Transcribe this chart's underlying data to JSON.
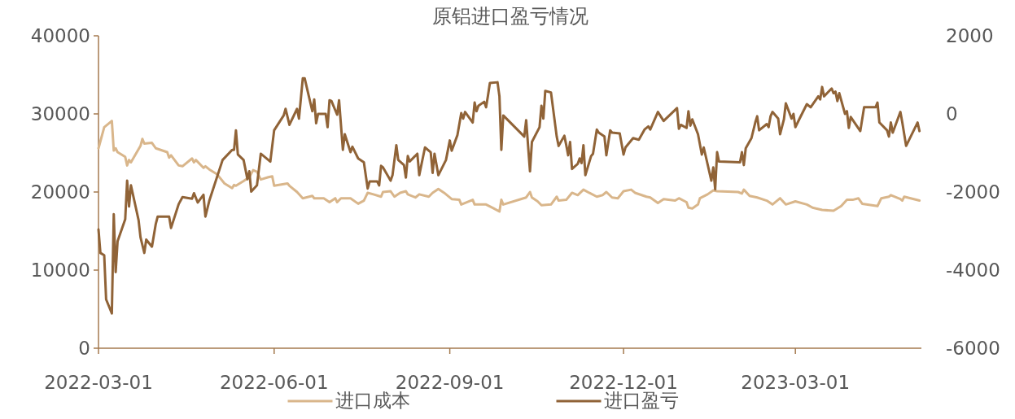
{
  "chart_data": {
    "type": "line",
    "title": "原铝进口盈亏情况",
    "series": [
      {
        "name": "进口成本",
        "color": "#d9b68b",
        "x": [
          "2022-03-01",
          "2022-03-04",
          "2022-03-08",
          "2022-03-09",
          "2022-03-10",
          "2022-03-11",
          "2022-03-15",
          "2022-03-16",
          "2022-03-17",
          "2022-03-18",
          "2022-03-23",
          "2022-03-24",
          "2022-03-25",
          "2022-03-29",
          "2022-03-31",
          "2022-04-06",
          "2022-04-07",
          "2022-04-08",
          "2022-04-12",
          "2022-04-14",
          "2022-04-19",
          "2022-04-20",
          "2022-04-21",
          "2022-04-25",
          "2022-04-26",
          "2022-04-28",
          "2022-05-02",
          "2022-05-06",
          "2022-05-10",
          "2022-05-11",
          "2022-05-12",
          "2022-05-16",
          "2022-05-19",
          "2022-05-21",
          "2022-05-23",
          "2022-05-25",
          "2022-05-29",
          "2022-05-31",
          "2022-06-01",
          "2022-06-08",
          "2022-06-09",
          "2022-06-13",
          "2022-06-16",
          "2022-06-21",
          "2022-06-22",
          "2022-06-27",
          "2022-06-30",
          "2022-07-03",
          "2022-07-04",
          "2022-07-06",
          "2022-07-11",
          "2022-07-15",
          "2022-07-18",
          "2022-07-20",
          "2022-07-23",
          "2022-07-27",
          "2022-07-28",
          "2022-08-01",
          "2022-08-03",
          "2022-08-06",
          "2022-08-09",
          "2022-08-10",
          "2022-08-14",
          "2022-08-16",
          "2022-08-21",
          "2022-08-23",
          "2022-08-26",
          "2022-08-29",
          "2022-09-02",
          "2022-09-06",
          "2022-09-07",
          "2022-09-13",
          "2022-09-14",
          "2022-09-20",
          "2022-09-24",
          "2022-09-27",
          "2022-09-28",
          "2022-09-29",
          "2022-10-11",
          "2022-10-13",
          "2022-10-14",
          "2022-10-17",
          "2022-10-19",
          "2022-10-24",
          "2022-10-27",
          "2022-10-28",
          "2022-11-01",
          "2022-11-04",
          "2022-11-07",
          "2022-11-10",
          "2022-11-13",
          "2022-11-17",
          "2022-11-20",
          "2022-11-22",
          "2022-11-25",
          "2022-11-28",
          "2022-12-01",
          "2022-12-05",
          "2022-12-07",
          "2022-12-13",
          "2022-12-15",
          "2022-12-19",
          "2022-12-22",
          "2022-12-28",
          "2022-12-30",
          "2023-01-03",
          "2023-01-04",
          "2023-01-06",
          "2023-01-09",
          "2023-01-10",
          "2023-01-14",
          "2023-01-17",
          "2023-01-19",
          "2023-01-30",
          "2023-02-01",
          "2023-02-02",
          "2023-02-05",
          "2023-02-09",
          "2023-02-14",
          "2023-02-17",
          "2023-02-21",
          "2023-02-24",
          "2023-03-01",
          "2023-03-07",
          "2023-03-10",
          "2023-03-15",
          "2023-03-21",
          "2023-03-25",
          "2023-03-28",
          "2023-03-31",
          "2023-04-03",
          "2023-04-05",
          "2023-04-13",
          "2023-04-15",
          "2023-04-19",
          "2023-04-20",
          "2023-04-25",
          "2023-04-26",
          "2023-04-27",
          "2023-05-05"
        ],
        "values": [
          25600,
          28300,
          29100,
          25300,
          25600,
          25100,
          24500,
          23400,
          24100,
          23800,
          25900,
          26800,
          26200,
          26300,
          25600,
          25100,
          24400,
          24700,
          23400,
          23300,
          24300,
          23800,
          24100,
          23100,
          23300,
          22900,
          22300,
          21100,
          20500,
          20900,
          20800,
          21400,
          21900,
          22800,
          22600,
          21600,
          21900,
          22000,
          20800,
          21100,
          20800,
          20000,
          19200,
          19500,
          19200,
          19200,
          18700,
          19200,
          18700,
          19200,
          19200,
          18500,
          18900,
          19900,
          19700,
          19400,
          20000,
          20100,
          19400,
          19900,
          20100,
          19700,
          19300,
          19700,
          19400,
          19900,
          20400,
          19900,
          19100,
          19000,
          18400,
          19000,
          18400,
          18400,
          17900,
          17500,
          19000,
          18400,
          19300,
          20000,
          19300,
          18800,
          18300,
          18400,
          19400,
          18900,
          19000,
          19900,
          19600,
          20300,
          19900,
          19400,
          19600,
          20000,
          19300,
          19200,
          20100,
          20300,
          19900,
          19400,
          19300,
          18600,
          19100,
          18900,
          19200,
          18700,
          18000,
          17900,
          18400,
          19200,
          19700,
          20200,
          20100,
          20000,
          19800,
          20300,
          19500,
          19300,
          18900,
          18400,
          19200,
          18400,
          18800,
          18400,
          18000,
          17700,
          17600,
          18200,
          19000,
          19000,
          19200,
          18500,
          18200,
          19200,
          19400,
          19600,
          19100,
          18900,
          19400,
          18900
        ]
      },
      {
        "name": "进口盈亏",
        "color": "#906337",
        "axis": "y2",
        "x": [
          "2022-03-01",
          "2022-03-02",
          "2022-03-04",
          "2022-03-05",
          "2022-03-08",
          "2022-03-09",
          "2022-03-10",
          "2022-03-11",
          "2022-03-15",
          "2022-03-16",
          "2022-03-17",
          "2022-03-18",
          "2022-03-22",
          "2022-03-23",
          "2022-03-25",
          "2022-03-26",
          "2022-03-29",
          "2022-03-31",
          "2022-04-01",
          "2022-04-07",
          "2022-04-08",
          "2022-04-12",
          "2022-04-14",
          "2022-04-19",
          "2022-04-20",
          "2022-04-22",
          "2022-04-25",
          "2022-04-26",
          "2022-04-28",
          "2022-05-05",
          "2022-05-10",
          "2022-05-11",
          "2022-05-12",
          "2022-05-13",
          "2022-05-16",
          "2022-05-18",
          "2022-05-19",
          "2022-05-20",
          "2022-05-23",
          "2022-05-25",
          "2022-05-30",
          "2022-06-01",
          "2022-06-06",
          "2022-06-07",
          "2022-06-09",
          "2022-06-13",
          "2022-06-14",
          "2022-06-16",
          "2022-06-17",
          "2022-06-21",
          "2022-06-22",
          "2022-06-23",
          "2022-06-24",
          "2022-06-28",
          "2022-06-29",
          "2022-06-30",
          "2022-07-01",
          "2022-07-04",
          "2022-07-05",
          "2022-07-07",
          "2022-07-08",
          "2022-07-11",
          "2022-07-12",
          "2022-07-15",
          "2022-07-18",
          "2022-07-20",
          "2022-07-21",
          "2022-07-25",
          "2022-07-26",
          "2022-07-27",
          "2022-07-28",
          "2022-08-01",
          "2022-08-02",
          "2022-08-04",
          "2022-08-05",
          "2022-08-08",
          "2022-08-09",
          "2022-08-10",
          "2022-08-11",
          "2022-08-15",
          "2022-08-16",
          "2022-08-19",
          "2022-08-22",
          "2022-08-23",
          "2022-08-24",
          "2022-08-26",
          "2022-08-30",
          "2022-09-01",
          "2022-09-02",
          "2022-09-05",
          "2022-09-07",
          "2022-09-08",
          "2022-09-09",
          "2022-09-13",
          "2022-09-14",
          "2022-09-15",
          "2022-09-16",
          "2022-09-19",
          "2022-09-20",
          "2022-09-21",
          "2022-09-22",
          "2022-09-26",
          "2022-09-27",
          "2022-09-28",
          "2022-09-29",
          "2022-10-10",
          "2022-10-11",
          "2022-10-13",
          "2022-10-14",
          "2022-10-18",
          "2022-10-19",
          "2022-10-20",
          "2022-10-21",
          "2022-10-24",
          "2022-10-27",
          "2022-10-28",
          "2022-10-31",
          "2022-11-01",
          "2022-11-02",
          "2022-11-03",
          "2022-11-04",
          "2022-11-07",
          "2022-11-08",
          "2022-11-09",
          "2022-11-10",
          "2022-11-11",
          "2022-11-14",
          "2022-11-15",
          "2022-11-17",
          "2022-11-18",
          "2022-11-21",
          "2022-11-22",
          "2022-11-24",
          "2022-11-25",
          "2022-11-29",
          "2022-12-01",
          "2022-12-02",
          "2022-12-06",
          "2022-12-09",
          "2022-12-12",
          "2022-12-14",
          "2022-12-15",
          "2022-12-19",
          "2022-12-22",
          "2022-12-29",
          "2022-12-30",
          "2022-12-31",
          "2023-01-03",
          "2023-01-04",
          "2023-01-05",
          "2023-01-06",
          "2023-01-09",
          "2023-01-11",
          "2023-01-12",
          "2023-01-16",
          "2023-01-17",
          "2023-01-18",
          "2023-01-19",
          "2023-01-20",
          "2023-01-31",
          "2023-02-01",
          "2023-02-02",
          "2023-02-03",
          "2023-02-06",
          "2023-02-08",
          "2023-02-09",
          "2023-02-10",
          "2023-02-14",
          "2023-02-15",
          "2023-02-16",
          "2023-02-17",
          "2023-02-20",
          "2023-02-21",
          "2023-02-23",
          "2023-02-24",
          "2023-02-27",
          "2023-02-28",
          "2023-03-01",
          "2023-03-03",
          "2023-03-07",
          "2023-03-09",
          "2023-03-13",
          "2023-03-14",
          "2023-03-15",
          "2023-03-16",
          "2023-03-20",
          "2023-03-21",
          "2023-03-22",
          "2023-03-23",
          "2023-03-24",
          "2023-03-27",
          "2023-03-28",
          "2023-03-29",
          "2023-03-30",
          "2023-04-04",
          "2023-04-06",
          "2023-04-12",
          "2023-04-13",
          "2023-04-14",
          "2023-04-18",
          "2023-04-19",
          "2023-04-20",
          "2023-04-21",
          "2023-04-25",
          "2023-04-26",
          "2023-04-28",
          "2023-05-04",
          "2023-05-05"
        ],
        "values": [
          -2960,
          -3560,
          -3620,
          -4750,
          -5110,
          -2570,
          -4050,
          -3260,
          -2700,
          -1710,
          -2370,
          -1830,
          -2720,
          -3160,
          -3560,
          -3220,
          -3400,
          -2820,
          -2630,
          -2630,
          -2920,
          -2310,
          -2130,
          -2170,
          -2030,
          -2270,
          -2070,
          -2630,
          -2230,
          -1180,
          -920,
          -920,
          -420,
          -1040,
          -1180,
          -1670,
          -1470,
          -1990,
          -1830,
          -1020,
          -1220,
          -420,
          -40,
          130,
          -280,
          130,
          -120,
          910,
          910,
          70,
          370,
          -240,
          0,
          0,
          -340,
          350,
          330,
          -20,
          350,
          -920,
          -520,
          -980,
          -840,
          -1140,
          -1240,
          -1910,
          -1730,
          -1730,
          -1830,
          -1330,
          -1370,
          -1710,
          -1570,
          -800,
          -1180,
          -1310,
          -1630,
          -1080,
          -1220,
          -1020,
          -1570,
          -860,
          -980,
          -1510,
          -1020,
          -1570,
          -1180,
          -680,
          -940,
          -540,
          20,
          -120,
          50,
          -220,
          290,
          70,
          210,
          310,
          170,
          470,
          790,
          810,
          450,
          -920,
          -40,
          -580,
          -160,
          -1470,
          -720,
          -340,
          210,
          -120,
          590,
          550,
          -580,
          -820,
          -560,
          -800,
          -1060,
          -720,
          -1410,
          -1280,
          -1140,
          -1260,
          -800,
          -1570,
          -1080,
          -1020,
          -400,
          -480,
          -580,
          -1060,
          -420,
          -480,
          -500,
          -1040,
          -860,
          -620,
          -660,
          -400,
          -320,
          -400,
          50,
          -180,
          150,
          -380,
          -280,
          -360,
          70,
          -300,
          -140,
          -520,
          -1040,
          -860,
          -1710,
          -1370,
          -1930,
          -980,
          -1220,
          -1240,
          -980,
          -1310,
          -880,
          -620,
          -220,
          -60,
          -420,
          -260,
          -340,
          -60,
          50,
          -120,
          -520,
          -140,
          270,
          -120,
          0,
          -340,
          -140,
          250,
          170,
          450,
          370,
          690,
          450,
          650,
          530,
          570,
          330,
          530,
          0,
          70,
          -360,
          -80,
          -440,
          170,
          170,
          290,
          -220,
          -420,
          -580,
          -220,
          -480,
          50,
          -220,
          -820,
          -220,
          -440
        ]
      }
    ],
    "xlim": [
      "2022-03-01",
      "2023-05-06"
    ],
    "xticks": [
      "2022-03-01",
      "2022-06-01",
      "2022-09-01",
      "2022-12-01",
      "2023-03-01"
    ],
    "ylim": [
      0,
      40000
    ],
    "yticks": [
      0,
      10000,
      20000,
      30000,
      40000
    ],
    "y2lim": [
      -6000,
      2000
    ],
    "y2ticks": [
      -6000,
      -4000,
      -2000,
      0,
      2000
    ],
    "legend": "bottom"
  }
}
